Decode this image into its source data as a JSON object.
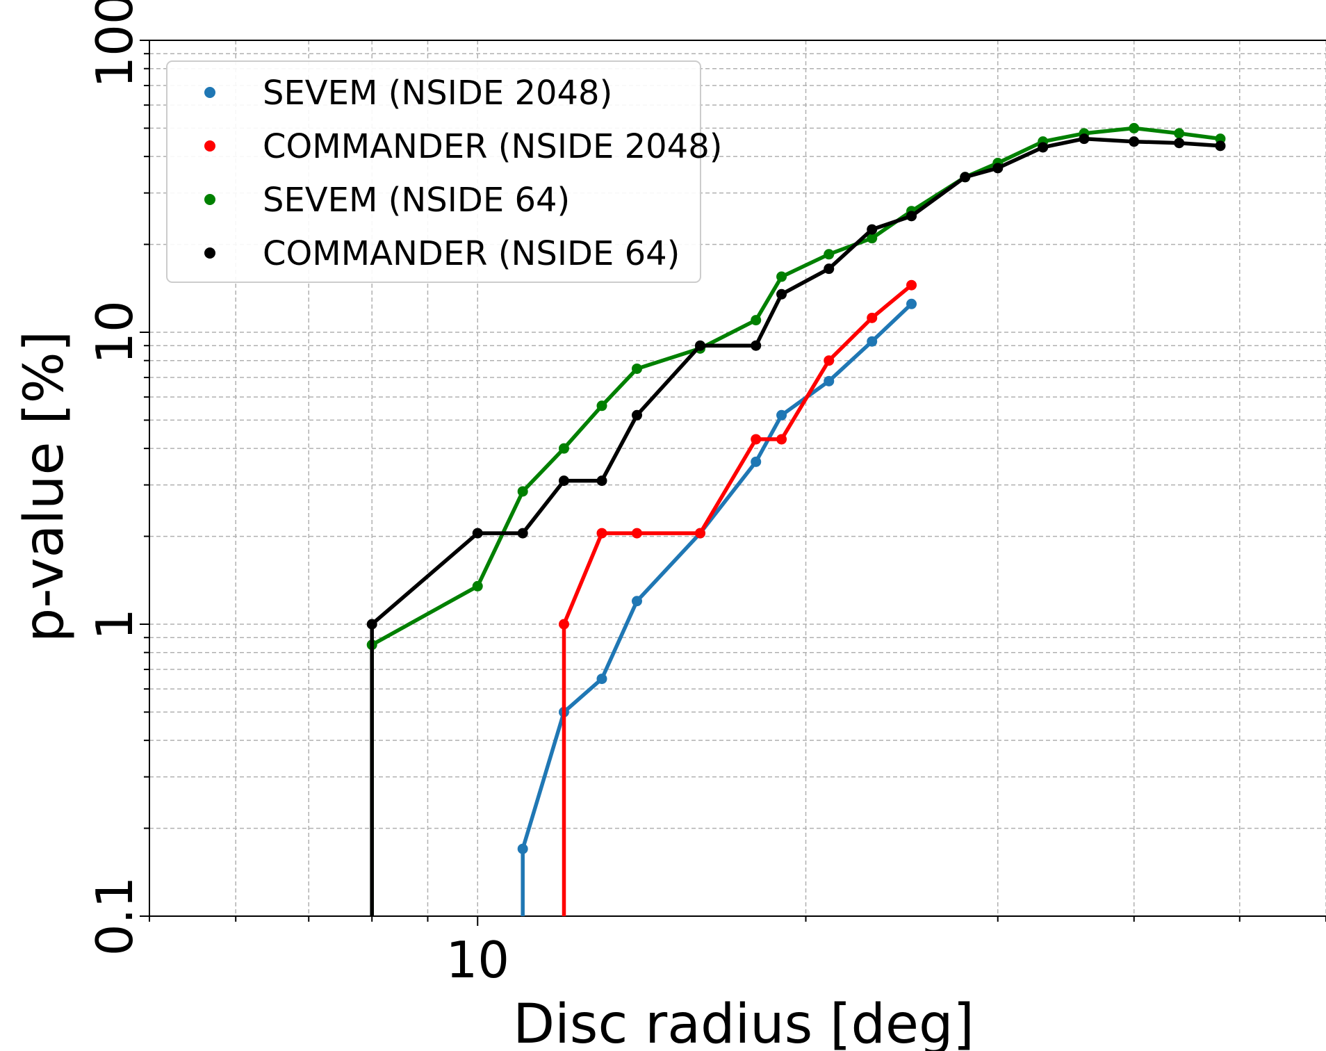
{
  "chart_data": {
    "type": "line",
    "title": "",
    "xlabel": "Disc radius [deg]",
    "ylabel": "p-value [%]",
    "xscale": "log",
    "yscale": "log",
    "xlim": [
      5,
      60
    ],
    "ylim": [
      0.1,
      100
    ],
    "x_tick_labels": [
      {
        "value": 10,
        "label": "10"
      }
    ],
    "y_tick_labels": [
      {
        "value": 0.1,
        "label": "0.1"
      },
      {
        "value": 1,
        "label": "1"
      },
      {
        "value": 10,
        "label": "10"
      },
      {
        "value": 100,
        "label": "100"
      }
    ],
    "grid": true,
    "legend_position": "top-left",
    "series": [
      {
        "name": "SEVEM (NSIDE 2048)",
        "color": "#1f77b4",
        "x": [
          11.0,
          11.0,
          12.0,
          13.0,
          14.0,
          16.0,
          18.0,
          19.0,
          21.0,
          23.0,
          25.0
        ],
        "y": [
          0.1,
          0.17,
          0.5,
          0.65,
          1.2,
          2.05,
          3.6,
          5.2,
          6.8,
          9.3,
          12.5
        ]
      },
      {
        "name": "COMMANDER (NSIDE 2048)",
        "color": "#ff0000",
        "x": [
          12.0,
          12.0,
          13.0,
          14.0,
          16.0,
          18.0,
          19.0,
          21.0,
          23.0,
          25.0
        ],
        "y": [
          0.1,
          1.0,
          2.05,
          2.05,
          2.05,
          4.3,
          4.3,
          8.0,
          11.2,
          14.5
        ]
      },
      {
        "name": "SEVEM (NSIDE 64)",
        "color": "#008000",
        "x": [
          8.0,
          8.0,
          10.0,
          11.0,
          12.0,
          13.0,
          14.0,
          16.0,
          18.0,
          19.0,
          21.0,
          23.0,
          25.0,
          28.0,
          30.0,
          33.0,
          36.0,
          40.0,
          44.0,
          48.0
        ],
        "y": [
          0.1,
          0.85,
          1.35,
          2.85,
          4.0,
          5.6,
          7.5,
          8.8,
          11.0,
          15.5,
          18.5,
          21.0,
          26.0,
          34.0,
          38.0,
          45.0,
          48.0,
          50.0,
          48.0,
          46.0
        ]
      },
      {
        "name": "COMMANDER (NSIDE 64)",
        "color": "#000000",
        "x": [
          8.0,
          8.0,
          10.0,
          11.0,
          12.0,
          13.0,
          14.0,
          16.0,
          18.0,
          19.0,
          21.0,
          23.0,
          25.0,
          28.0,
          30.0,
          33.0,
          36.0,
          40.0,
          44.0,
          48.0
        ],
        "y": [
          0.1,
          1.0,
          2.05,
          2.05,
          3.1,
          3.1,
          5.2,
          9.0,
          9.0,
          13.5,
          16.5,
          22.5,
          25.0,
          34.0,
          36.5,
          43.0,
          46.0,
          45.0,
          44.5,
          43.5
        ]
      }
    ]
  }
}
